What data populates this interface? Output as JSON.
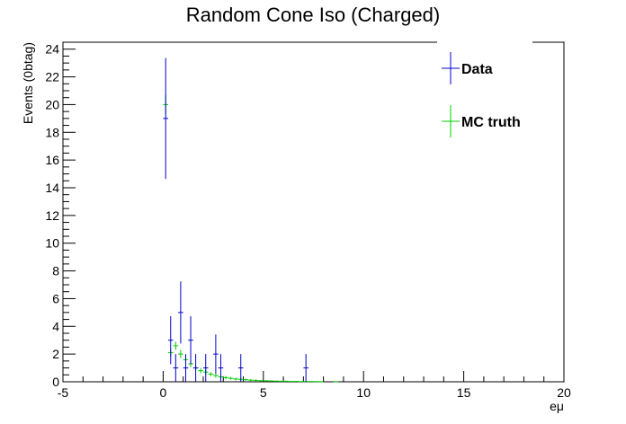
{
  "chart_data": {
    "type": "scatter",
    "title": "Random Cone Iso (Charged)",
    "xlabel": "eμ",
    "ylabel": "Events (0btag)",
    "xlim": [
      -5,
      20
    ],
    "ylim": [
      0,
      24.5
    ],
    "x_ticks": [
      -5,
      0,
      5,
      10,
      15,
      20
    ],
    "y_ticks": [
      0,
      2,
      4,
      6,
      8,
      10,
      12,
      14,
      16,
      18,
      20,
      22,
      24
    ],
    "legend_placement": "top-right",
    "series": [
      {
        "name": "Data",
        "color": "#0000cc",
        "points": [
          {
            "x": 0.125,
            "y": 19,
            "err": 4.36
          },
          {
            "x": 0.375,
            "y": 3,
            "err": 1.73
          },
          {
            "x": 0.625,
            "y": 1,
            "err": 1
          },
          {
            "x": 0.875,
            "y": 5,
            "err": 2.24
          },
          {
            "x": 1.125,
            "y": 1,
            "err": 1
          },
          {
            "x": 1.375,
            "y": 3,
            "err": 1.73
          },
          {
            "x": 1.625,
            "y": 1,
            "err": 1
          },
          {
            "x": 2.125,
            "y": 1,
            "err": 1
          },
          {
            "x": 2.625,
            "y": 2,
            "err": 1.41
          },
          {
            "x": 2.875,
            "y": 1,
            "err": 1
          },
          {
            "x": 3.875,
            "y": 1,
            "err": 1
          },
          {
            "x": 7.125,
            "y": 1,
            "err": 1
          }
        ]
      },
      {
        "name": "MC truth",
        "color": "#00cc00",
        "points": [
          {
            "x": 0.125,
            "y": 20.0,
            "err": 0.7
          },
          {
            "x": 0.375,
            "y": 2.1,
            "err": 0.3
          },
          {
            "x": 0.625,
            "y": 2.6,
            "err": 0.3
          },
          {
            "x": 0.875,
            "y": 2.0,
            "err": 0.3
          },
          {
            "x": 1.125,
            "y": 1.6,
            "err": 0.25
          },
          {
            "x": 1.375,
            "y": 1.3,
            "err": 0.25
          },
          {
            "x": 1.625,
            "y": 1.0,
            "err": 0.2
          },
          {
            "x": 1.875,
            "y": 0.8,
            "err": 0.2
          },
          {
            "x": 2.125,
            "y": 0.7,
            "err": 0.2
          },
          {
            "x": 2.375,
            "y": 0.55,
            "err": 0.15
          },
          {
            "x": 2.625,
            "y": 0.45,
            "err": 0.15
          },
          {
            "x": 2.875,
            "y": 0.35,
            "err": 0.12
          },
          {
            "x": 3.125,
            "y": 0.3,
            "err": 0.12
          },
          {
            "x": 3.375,
            "y": 0.25,
            "err": 0.1
          },
          {
            "x": 3.625,
            "y": 0.2,
            "err": 0.1
          },
          {
            "x": 3.875,
            "y": 0.18,
            "err": 0.1
          },
          {
            "x": 4.125,
            "y": 0.15,
            "err": 0.08
          },
          {
            "x": 4.375,
            "y": 0.12,
            "err": 0.08
          },
          {
            "x": 4.625,
            "y": 0.1,
            "err": 0.07
          },
          {
            "x": 4.875,
            "y": 0.08,
            "err": 0.06
          },
          {
            "x": 5.125,
            "y": 0.07,
            "err": 0.05
          },
          {
            "x": 5.375,
            "y": 0.06,
            "err": 0.05
          },
          {
            "x": 5.625,
            "y": 0.05,
            "err": 0.04
          },
          {
            "x": 5.875,
            "y": 0.04,
            "err": 0.04
          },
          {
            "x": 6.125,
            "y": 0.04,
            "err": 0.03
          },
          {
            "x": 6.375,
            "y": 0.03,
            "err": 0.03
          },
          {
            "x": 6.625,
            "y": 0.03,
            "err": 0.03
          },
          {
            "x": 6.875,
            "y": 0.02,
            "err": 0.02
          },
          {
            "x": 7.125,
            "y": 0.02,
            "err": 0.02
          },
          {
            "x": 7.375,
            "y": 0.02,
            "err": 0.02
          },
          {
            "x": 7.625,
            "y": 0.015,
            "err": 0.015
          },
          {
            "x": 7.875,
            "y": 0.01,
            "err": 0.01
          },
          {
            "x": 8.625,
            "y": 0.01,
            "err": 0.01
          }
        ]
      }
    ]
  }
}
